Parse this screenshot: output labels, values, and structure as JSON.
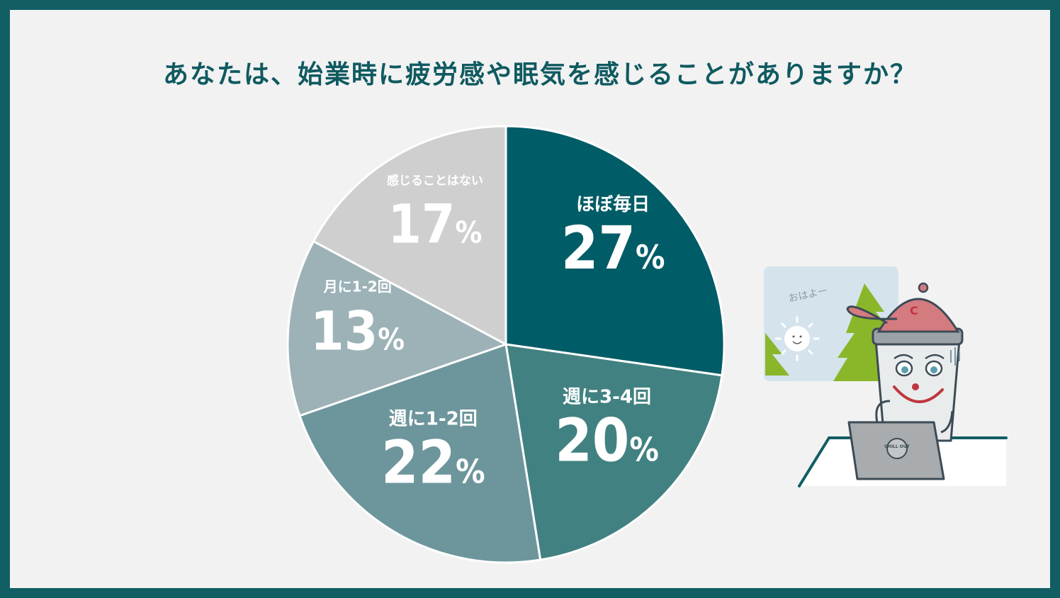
{
  "colors": {
    "frame": "#115e63",
    "background": "#f2f2f2",
    "title": "#0f5a60"
  },
  "chart_data": {
    "type": "pie",
    "title": "あなたは、始業時に疲労感や眠気を感じることがありますか？",
    "slices": [
      {
        "label": "ほぼ毎日",
        "value": 27,
        "display": "27",
        "color": "#005c66"
      },
      {
        "label": "週に3-4回",
        "value": 20,
        "display": "20",
        "color": "#428181"
      },
      {
        "label": "週に1-2回",
        "value": 22,
        "display": "22",
        "color": "#6d969c"
      },
      {
        "label": "月に1-2回",
        "value": 13,
        "display": "13",
        "color": "#9cb2b7"
      },
      {
        "label": "感じることはない",
        "value": 17,
        "display": "17",
        "color": "#d0cfcf"
      }
    ],
    "percent_symbol": "%",
    "start": "12 o'clock",
    "direction": "clockwise"
  },
  "illustration": {
    "speech": "おはよー",
    "laptop_logo": "CHILL OUT",
    "cap_letter": "C",
    "icons": [
      "sun-icon",
      "tree-icon",
      "character-icon",
      "laptop-icon"
    ]
  }
}
